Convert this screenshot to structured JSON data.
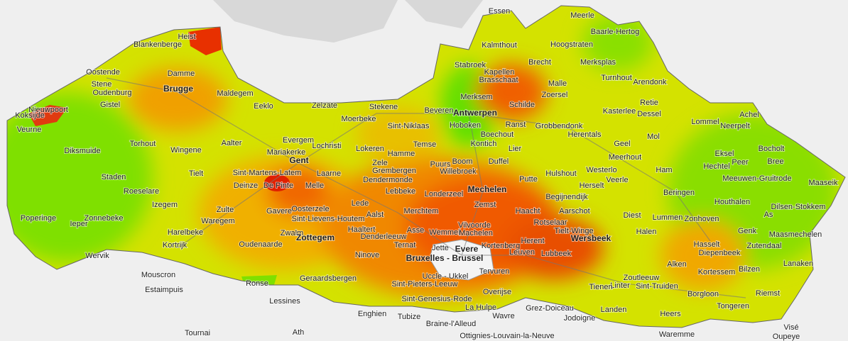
{
  "labels": [
    "Essen",
    "Meerle",
    "Baarle-Hertog",
    "Heist",
    "Blankenberge",
    "Kalmthout",
    "Hoogstraten",
    "Oostende",
    "Stabroek",
    "Kapellen",
    "Brecht",
    "Merksplas",
    "Damme",
    "Brugge",
    "Stene",
    "Oudenburg",
    "Brasschaat",
    "Malle",
    "Turnhout",
    "Arendonk",
    "Maldegem",
    "Gistel",
    "Nieuwpoort",
    "Merksem",
    "Zoersel",
    "Retie",
    "Koksijde",
    "Eeklo",
    "Zelzate",
    "Stekene",
    "Antwerpen",
    "Schilde",
    "Kasterlee",
    "Achel",
    "Dessel",
    "Veurne",
    "Moerbeke",
    "Sint-Niklaas",
    "Beveren",
    "Hoboken",
    "Ranst",
    "Grobbendonk",
    "Lommel",
    "Neerpelt",
    "Herentals",
    "Mol",
    "Evergem",
    "Diksmuide",
    "Torhout",
    "Lokeren",
    "Temse",
    "Boechout",
    "Geel",
    "Bocholt",
    "Aalter",
    "Lochristi",
    "Hamme",
    "Kontich",
    "Lier",
    "Meerhout",
    "Eksel",
    "Wingene",
    "Mariakerke",
    "Zele",
    "Boom",
    "Duffel",
    "Hechtel",
    "Peer",
    "Bree",
    "Gent",
    "Puurs",
    "Tielt",
    "Sint-Martens-Latem",
    "Laarne",
    "Grembergen",
    "Willebroek",
    "Hulshout",
    "Westerlo",
    "Ham",
    "Staden",
    "Dendermonde",
    "Mechelen",
    "Putte",
    "Herselt",
    "Veerle",
    "Meeuwen-Gruitrode",
    "Maaseik",
    "Deinze",
    "De Pinte",
    "Melle",
    "Lebbeke",
    "Roeselare",
    "Londerzeel",
    "Begijnendijk",
    "Beringen",
    "Izegem",
    "Lede",
    "Zemst",
    "Houthalen",
    "Poperinge",
    "Oosterzele",
    "Merchtem",
    "Haacht",
    "Aarschot",
    "Diest",
    "Lummen",
    "Zulte",
    "Gavere",
    "Aalst",
    "Dilsen-Stokkem",
    "Zonnebeke",
    "Waregem",
    "Sint-Lievens-Houtem",
    "Vilvoorde",
    "Zonhoven",
    "As",
    "Ieper",
    "Harelbeke",
    "Haaltert",
    "Asse",
    "Rotselaar",
    "Tielt-Winge",
    "Halen",
    "Genk",
    "Maasmechelen",
    "Zwalm",
    "Wemmel",
    "Machelen",
    "Wersbeek",
    "Denderleeuw",
    "Kortrijk",
    "Zottegem",
    "Hasselt",
    "Herent",
    "Kortenberg",
    "Zutendaal",
    "Oudenaarde",
    "Ternat",
    "Evere",
    "Leuven",
    "Lubbeek",
    "Diepenbeek",
    "Wervik",
    "Ninove",
    "Jette",
    "Bruxelles - Brussel",
    "Alken",
    "Kortessem",
    "Lanaken",
    "Mouscron",
    "Geraardsbergen",
    "Ronse",
    "Uccle - Ukkel",
    "Tervuren",
    "Zoutleeuw",
    "Bilzen",
    "Estaimpuis",
    "Sint-Pieters-Leeuw",
    "Linter",
    "Sint-Truiden",
    "Tienen",
    "Borgloon",
    "Riemst",
    "Overijse",
    "Lessines",
    "Sint-Genesius-Rode",
    "La Hulpe",
    "Grez-Doiceau",
    "Landen",
    "Heers",
    "Tongeren",
    "Enghien",
    "Wavre",
    "Jodoigne",
    "Tubize",
    "Braine-l'Alleud",
    "Visé",
    "Tournai",
    "Ath",
    "Ottignies-Louvain-la-Neuve",
    "Waremme",
    "Oupeye"
  ]
}
